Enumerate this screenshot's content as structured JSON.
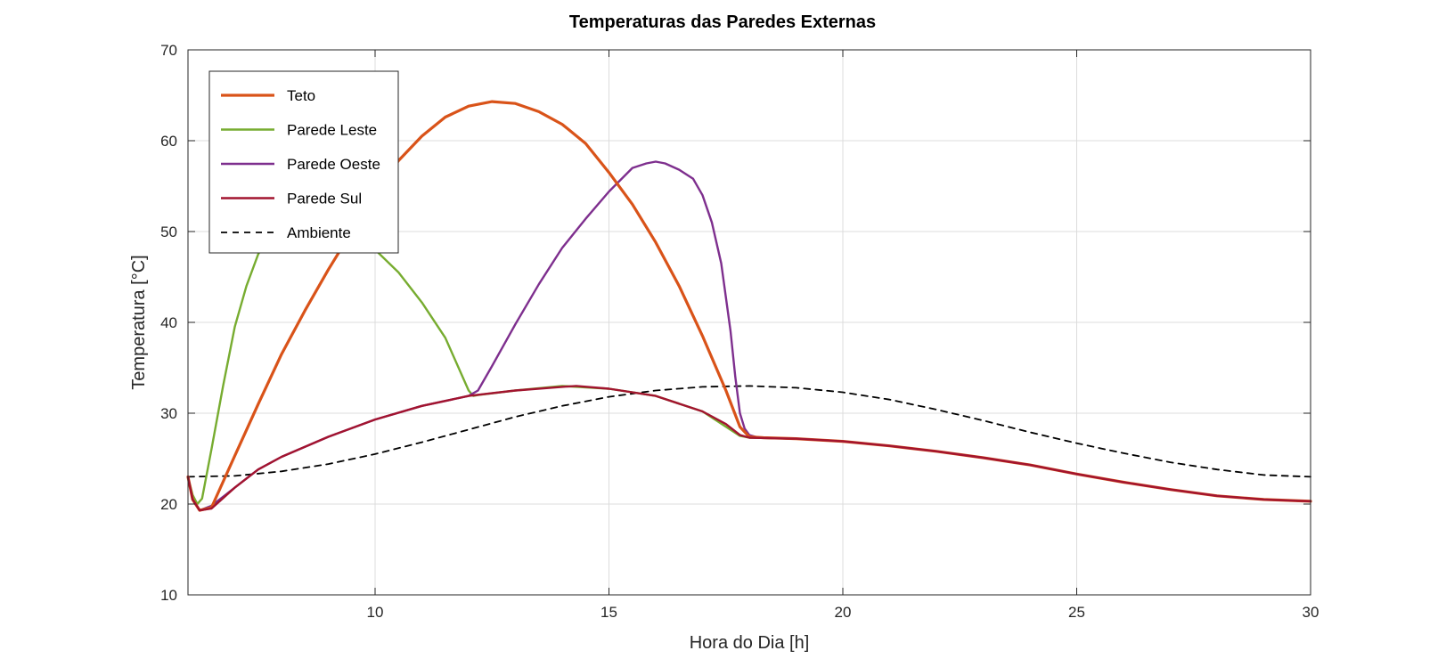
{
  "chart_data": {
    "type": "line",
    "title": "Temperaturas das Paredes Externas",
    "xlabel": "Hora do Dia [h]",
    "ylabel": "Temperatura [°C]",
    "xlim": [
      6,
      30
    ],
    "ylim": [
      10,
      70
    ],
    "xticks": [
      10,
      15,
      20,
      25,
      30
    ],
    "yticks": [
      10,
      20,
      30,
      40,
      50,
      60,
      70
    ],
    "grid": true,
    "legend_position": "top-left",
    "series": [
      {
        "name": "Teto",
        "color": "#D95319",
        "style": "solid",
        "emphasis": "thick",
        "points": [
          [
            6,
            23.0
          ],
          [
            6.1,
            20.5
          ],
          [
            6.25,
            19.3
          ],
          [
            6.5,
            19.6
          ],
          [
            7,
            25.3
          ],
          [
            7.5,
            31.0
          ],
          [
            8,
            36.5
          ],
          [
            8.5,
            41.3
          ],
          [
            9,
            45.8
          ],
          [
            9.5,
            50.0
          ],
          [
            10,
            54.2
          ],
          [
            10.5,
            57.8
          ],
          [
            11,
            60.5
          ],
          [
            11.5,
            62.6
          ],
          [
            12,
            63.8
          ],
          [
            12.5,
            64.3
          ],
          [
            13,
            64.1
          ],
          [
            13.5,
            63.2
          ],
          [
            14,
            61.8
          ],
          [
            14.5,
            59.7
          ],
          [
            15,
            56.5
          ],
          [
            15.5,
            53.0
          ],
          [
            16,
            48.8
          ],
          [
            16.5,
            44.0
          ],
          [
            17,
            38.5
          ],
          [
            17.5,
            32.5
          ],
          [
            17.8,
            28.5
          ],
          [
            18,
            27.4
          ],
          [
            18.3,
            27.3
          ],
          [
            19,
            27.2
          ],
          [
            20,
            26.9
          ],
          [
            21,
            26.4
          ],
          [
            22,
            25.8
          ],
          [
            23,
            25.1
          ],
          [
            24,
            24.3
          ],
          [
            25,
            23.3
          ],
          [
            26,
            22.4
          ],
          [
            27,
            21.6
          ],
          [
            28,
            20.9
          ],
          [
            29,
            20.5
          ],
          [
            30,
            20.3
          ]
        ]
      },
      {
        "name": "Parede Leste",
        "color": "#77AC30",
        "style": "solid",
        "points": [
          [
            6,
            23.0
          ],
          [
            6.1,
            21.0
          ],
          [
            6.2,
            20.0
          ],
          [
            6.3,
            20.6
          ],
          [
            6.5,
            26.0
          ],
          [
            6.75,
            33.0
          ],
          [
            7,
            39.5
          ],
          [
            7.25,
            44.0
          ],
          [
            7.5,
            47.5
          ],
          [
            7.75,
            49.5
          ],
          [
            8,
            50.8
          ],
          [
            8.5,
            51.2
          ],
          [
            9,
            50.9
          ],
          [
            9.5,
            50.0
          ],
          [
            10,
            48.0
          ],
          [
            10.5,
            45.5
          ],
          [
            11,
            42.2
          ],
          [
            11.5,
            38.3
          ],
          [
            12,
            32.5
          ],
          [
            12.1,
            31.9
          ],
          [
            12.2,
            32.0
          ],
          [
            13,
            32.5
          ],
          [
            14,
            33.0
          ],
          [
            15,
            32.7
          ],
          [
            16,
            31.9
          ],
          [
            17,
            30.2
          ],
          [
            17.8,
            27.5
          ],
          [
            18,
            27.3
          ],
          [
            19,
            27.2
          ],
          [
            20,
            26.9
          ],
          [
            21,
            26.4
          ],
          [
            22,
            25.8
          ],
          [
            23,
            25.1
          ],
          [
            24,
            24.3
          ],
          [
            25,
            23.3
          ],
          [
            26,
            22.4
          ],
          [
            27,
            21.6
          ],
          [
            28,
            20.9
          ],
          [
            29,
            20.5
          ],
          [
            30,
            20.3
          ]
        ]
      },
      {
        "name": "Parede Oeste",
        "color": "#7E2F8E",
        "style": "solid",
        "points": [
          [
            6,
            23.0
          ],
          [
            6.1,
            20.5
          ],
          [
            6.25,
            19.3
          ],
          [
            6.5,
            19.8
          ],
          [
            7,
            21.8
          ],
          [
            7.5,
            23.8
          ],
          [
            8,
            25.2
          ],
          [
            9,
            27.4
          ],
          [
            10,
            29.3
          ],
          [
            11,
            30.8
          ],
          [
            12,
            31.9
          ],
          [
            12.2,
            32.5
          ],
          [
            12.5,
            35.2
          ],
          [
            13,
            39.8
          ],
          [
            13.5,
            44.2
          ],
          [
            14,
            48.2
          ],
          [
            14.5,
            51.4
          ],
          [
            15,
            54.4
          ],
          [
            15.5,
            57.0
          ],
          [
            15.8,
            57.5
          ],
          [
            16,
            57.7
          ],
          [
            16.2,
            57.5
          ],
          [
            16.5,
            56.8
          ],
          [
            16.8,
            55.8
          ],
          [
            17,
            54.0
          ],
          [
            17.2,
            51.0
          ],
          [
            17.4,
            46.5
          ],
          [
            17.6,
            39.0
          ],
          [
            17.7,
            34.0
          ],
          [
            17.8,
            30.0
          ],
          [
            17.9,
            28.3
          ],
          [
            18,
            27.6
          ],
          [
            18.2,
            27.3
          ],
          [
            19,
            27.2
          ],
          [
            20,
            26.9
          ],
          [
            21,
            26.4
          ],
          [
            22,
            25.8
          ],
          [
            23,
            25.1
          ],
          [
            24,
            24.3
          ],
          [
            25,
            23.3
          ],
          [
            26,
            22.4
          ],
          [
            27,
            21.6
          ],
          [
            28,
            20.9
          ],
          [
            29,
            20.5
          ],
          [
            30,
            20.3
          ]
        ]
      },
      {
        "name": "Parede Sul",
        "color": "#A2142F",
        "style": "solid",
        "points": [
          [
            6,
            23.0
          ],
          [
            6.1,
            20.5
          ],
          [
            6.25,
            19.3
          ],
          [
            6.5,
            19.5
          ],
          [
            7,
            21.8
          ],
          [
            7.5,
            23.8
          ],
          [
            8,
            25.2
          ],
          [
            9,
            27.4
          ],
          [
            10,
            29.3
          ],
          [
            11,
            30.8
          ],
          [
            12,
            31.9
          ],
          [
            13,
            32.5
          ],
          [
            14,
            32.9
          ],
          [
            14.3,
            33.0
          ],
          [
            15,
            32.7
          ],
          [
            16,
            31.9
          ],
          [
            17,
            30.2
          ],
          [
            17.5,
            28.8
          ],
          [
            17.8,
            27.6
          ],
          [
            18,
            27.3
          ],
          [
            19,
            27.2
          ],
          [
            20,
            26.9
          ],
          [
            21,
            26.4
          ],
          [
            22,
            25.8
          ],
          [
            23,
            25.1
          ],
          [
            24,
            24.3
          ],
          [
            25,
            23.3
          ],
          [
            26,
            22.4
          ],
          [
            27,
            21.6
          ],
          [
            28,
            20.9
          ],
          [
            29,
            20.5
          ],
          [
            30,
            20.3
          ]
        ]
      },
      {
        "name": "Ambiente",
        "color": "#000000",
        "style": "dashed",
        "points": [
          [
            6,
            23.0
          ],
          [
            7,
            23.1
          ],
          [
            8,
            23.6
          ],
          [
            9,
            24.4
          ],
          [
            10,
            25.5
          ],
          [
            11,
            26.8
          ],
          [
            12,
            28.2
          ],
          [
            13,
            29.6
          ],
          [
            14,
            30.8
          ],
          [
            15,
            31.8
          ],
          [
            16,
            32.5
          ],
          [
            17,
            32.9
          ],
          [
            18,
            33.0
          ],
          [
            19,
            32.8
          ],
          [
            20,
            32.3
          ],
          [
            21,
            31.5
          ],
          [
            22,
            30.4
          ],
          [
            23,
            29.2
          ],
          [
            24,
            27.9
          ],
          [
            25,
            26.7
          ],
          [
            26,
            25.6
          ],
          [
            27,
            24.6
          ],
          [
            28,
            23.8
          ],
          [
            29,
            23.2
          ],
          [
            30,
            23.0
          ]
        ]
      }
    ]
  }
}
